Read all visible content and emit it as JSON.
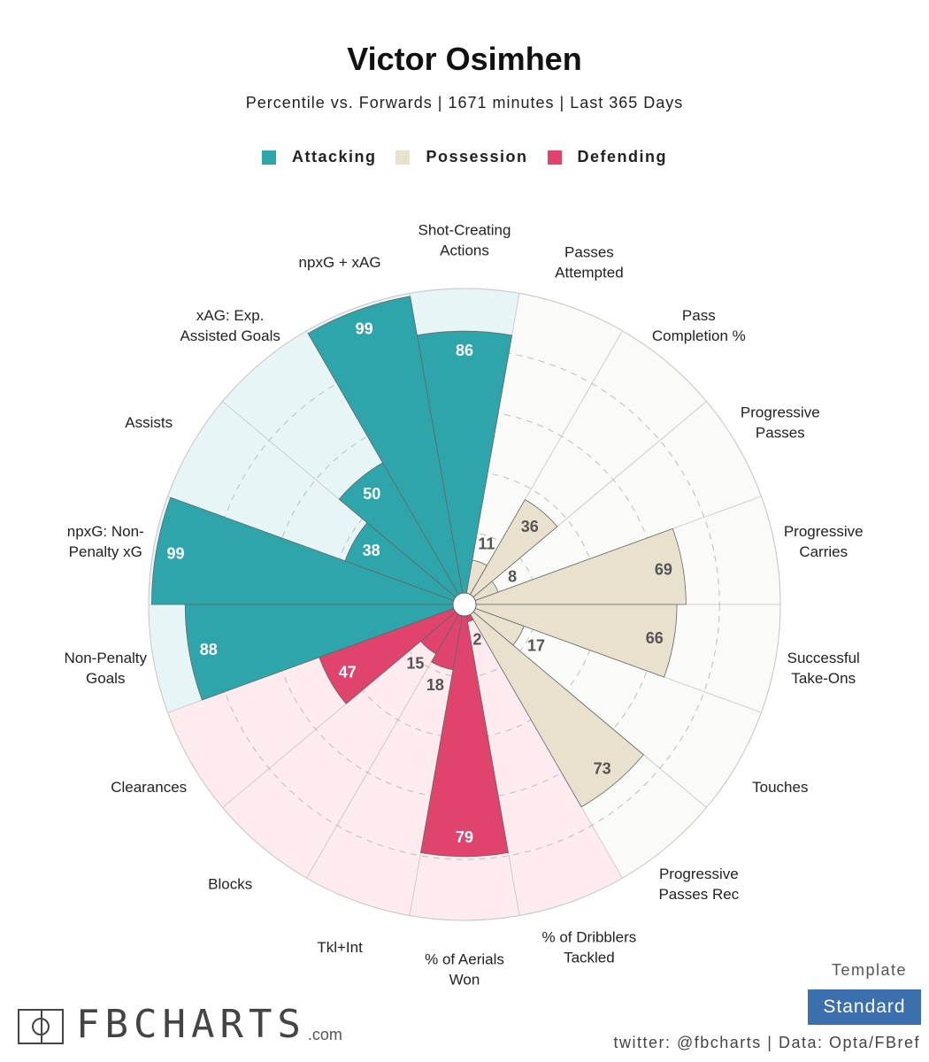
{
  "header": {
    "title": "Victor Osimhen",
    "subtitle": "Percentile vs. Forwards | 1671 minutes | Last 365 Days"
  },
  "legend": [
    {
      "label": "Attacking",
      "color": "#2ea5ab"
    },
    {
      "label": "Possession",
      "color": "#e8e1cd"
    },
    {
      "label": "Defending",
      "color": "#e0436b"
    }
  ],
  "chart_data": {
    "type": "polar-bar",
    "rmax": 100,
    "groups": {
      "Attacking": {
        "bar_color": "#2ea5ab",
        "bg_color": "#e8f5f6"
      },
      "Possession": {
        "bar_color": "#e8e1cd",
        "bg_color": "#fafaf8"
      },
      "Defending": {
        "bar_color": "#e0436b",
        "bg_color": "#fdebf0"
      }
    },
    "categories": [
      {
        "label": [
          "Shot-Creating",
          "Actions"
        ],
        "value": 86,
        "group": "Attacking"
      },
      {
        "label": [
          "Passes",
          "Attempted"
        ],
        "value": 11,
        "group": "Possession"
      },
      {
        "label": [
          "Pass",
          "Completion %"
        ],
        "value": 36,
        "group": "Possession"
      },
      {
        "label": [
          "Progressive",
          "Passes"
        ],
        "value": 8,
        "group": "Possession"
      },
      {
        "label": [
          "Progressive",
          "Carries"
        ],
        "value": 69,
        "group": "Possession"
      },
      {
        "label": [
          "Successful",
          "Take-Ons"
        ],
        "value": 66,
        "group": "Possession"
      },
      {
        "label": [
          "Touches"
        ],
        "value": 17,
        "group": "Possession"
      },
      {
        "label": [
          "Progressive",
          "Passes Rec"
        ],
        "value": 73,
        "group": "Possession"
      },
      {
        "label": [
          "% of Dribblers",
          "Tackled"
        ],
        "value": 2,
        "group": "Defending"
      },
      {
        "label": [
          "% of Aerials",
          "Won"
        ],
        "value": 79,
        "group": "Defending"
      },
      {
        "label": [
          "Tkl+Int"
        ],
        "value": 18,
        "group": "Defending"
      },
      {
        "label": [
          "Blocks"
        ],
        "value": 15,
        "group": "Defending"
      },
      {
        "label": [
          "Clearances"
        ],
        "value": 47,
        "group": "Defending"
      },
      {
        "label": [
          "Non-Penalty",
          "Goals"
        ],
        "value": 88,
        "group": "Attacking"
      },
      {
        "label": [
          "npxG: Non-",
          "Penalty xG"
        ],
        "value": 99,
        "group": "Attacking"
      },
      {
        "label": [
          "Assists"
        ],
        "value": 38,
        "group": "Attacking"
      },
      {
        "label": [
          "xAG: Exp.",
          "Assisted Goals"
        ],
        "value": 50,
        "group": "Attacking"
      },
      {
        "label": [
          "npxG + xAG"
        ],
        "value": 99,
        "group": "Attacking"
      }
    ]
  },
  "footer": {
    "logo_text": "FBCHARTS",
    "logo_suffix": ".com",
    "template_label": "Template",
    "template_value": "Standard",
    "credits": "twitter: @fbcharts | Data: Opta/FBref"
  }
}
